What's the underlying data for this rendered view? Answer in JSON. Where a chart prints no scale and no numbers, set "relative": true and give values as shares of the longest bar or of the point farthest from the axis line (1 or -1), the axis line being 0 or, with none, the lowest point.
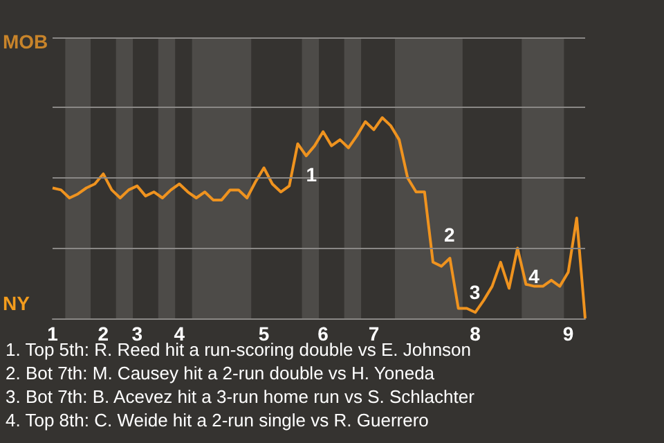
{
  "chart_data": {
    "type": "line",
    "relative": true,
    "categories": [
      "1",
      null,
      null,
      null,
      null,
      null,
      "2",
      null,
      null,
      null,
      "3",
      null,
      null,
      null,
      null,
      "4",
      null,
      null,
      null,
      null,
      null,
      null,
      null,
      null,
      null,
      "5",
      null,
      null,
      null,
      null,
      null,
      null,
      "6",
      null,
      null,
      null,
      null,
      null,
      "7",
      null,
      null,
      null,
      null,
      null,
      null,
      null,
      null,
      null,
      null,
      null,
      "8",
      null,
      null,
      null,
      null,
      null,
      null,
      null,
      null,
      null,
      null,
      "9",
      null,
      null
    ],
    "series": [
      {
        "color": "#ef931f",
        "values": [
          0.65,
          0.64,
          0.6,
          0.62,
          0.65,
          0.67,
          0.72,
          0.64,
          0.6,
          0.64,
          0.66,
          0.61,
          0.63,
          0.6,
          0.64,
          0.67,
          0.63,
          0.6,
          0.63,
          0.59,
          0.59,
          0.64,
          0.64,
          0.6,
          0.68,
          0.75,
          0.67,
          0.63,
          0.66,
          0.87,
          0.81,
          0.86,
          0.93,
          0.86,
          0.89,
          0.85,
          0.91,
          0.98,
          0.94,
          1,
          0.96,
          0.89,
          0.7,
          0.63,
          0.63,
          0.28,
          0.26,
          0.3,
          0.05,
          0.05,
          0.03,
          0.09,
          0.16,
          0.28,
          0.15,
          0.35,
          0.17,
          0.16,
          0.16,
          0.19,
          0.16,
          0.23,
          0.5,
          0
        ]
      }
    ],
    "ref_lines": [
      {
        "axis": "y",
        "value": 0.35,
        "color": "#8a8886"
      },
      {
        "axis": "y",
        "value": 0.7,
        "color": "#8a8886"
      },
      {
        "axis": "y",
        "value": 1.05,
        "color": "#8a8886"
      },
      {
        "axis": "y",
        "value": 1.4,
        "color": "#8a8886"
      }
    ],
    "marker": "none",
    "annotations": [
      "MOB",
      "NY",
      "1",
      "2",
      "3",
      "4",
      "1. Top 5th: R. Reed hit a run-scoring double vs E. Johnson",
      "2. Bot 7th: M. Causey hit a 2-run double vs H. Yoneda",
      "3. Bot 7th: B. Acevez hit a 3-run home run vs S. Schlachter",
      "4. Top 8th: C. Weide hit a 2-run single vs R. Guerrero"
    ]
  }
}
